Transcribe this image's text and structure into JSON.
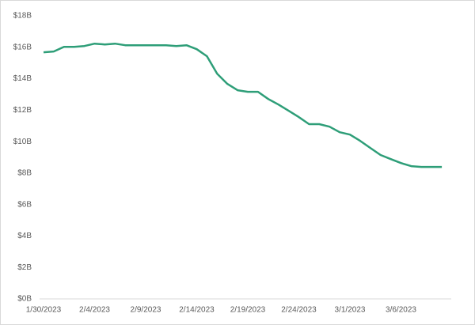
{
  "chart_data": {
    "type": "line",
    "categories": [
      "1/30/2023",
      null,
      null,
      null,
      null,
      "2/4/2023",
      null,
      null,
      null,
      null,
      "2/9/2023",
      null,
      null,
      null,
      null,
      "2/14/2023",
      null,
      null,
      null,
      null,
      "2/19/2023",
      null,
      null,
      null,
      null,
      "2/24/2023",
      null,
      null,
      null,
      null,
      "3/1/2023",
      null,
      null,
      null,
      null,
      "3/6/2023",
      null,
      null,
      null,
      null
    ],
    "series": [
      {
        "color": "#2e9e78",
        "values": [
          15.68,
          15.73,
          16.03,
          16.03,
          16.08,
          16.23,
          16.18,
          16.23,
          16.13,
          16.13,
          16.13,
          16.13,
          16.13,
          16.08,
          16.13,
          15.88,
          15.43,
          14.32,
          13.67,
          13.27,
          13.17,
          13.17,
          12.71,
          12.36,
          11.96,
          11.56,
          11.11,
          11.11,
          10.95,
          10.6,
          10.45,
          10.05,
          9.6,
          9.15,
          8.89,
          8.64,
          8.44,
          8.39,
          8.39,
          8.39
        ]
      }
    ],
    "ylim": [
      0,
      18
    ],
    "yticks": [
      {
        "value": 0,
        "label": "$0B"
      },
      {
        "value": 2,
        "label": "$2B"
      },
      {
        "value": 4,
        "label": "$4B"
      },
      {
        "value": 6,
        "label": "$6B"
      },
      {
        "value": 8,
        "label": "$8B"
      },
      {
        "value": 10,
        "label": "$10B"
      },
      {
        "value": 12,
        "label": "$12B"
      },
      {
        "value": 14,
        "label": "$14B"
      },
      {
        "value": 16,
        "label": "$16B"
      },
      {
        "value": 18,
        "label": "$18B"
      }
    ],
    "grid": false
  }
}
